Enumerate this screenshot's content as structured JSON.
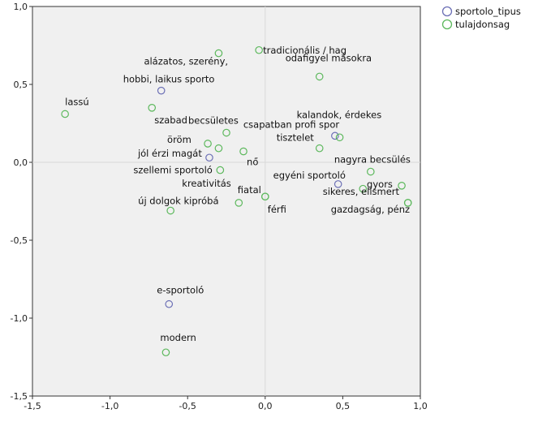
{
  "chart_data": {
    "type": "scatter",
    "title": "",
    "xlabel": "",
    "ylabel": "",
    "xlim": [
      -1.5,
      1.0
    ],
    "ylim": [
      -1.5,
      1.0
    ],
    "x_ticks": [
      -1.5,
      -1.0,
      -0.5,
      0.0,
      0.5,
      1.0
    ],
    "y_ticks": [
      -1.5,
      -1.0,
      -0.5,
      0.0,
      0.5,
      1.0
    ],
    "x_tick_labels": [
      "-1,5",
      "-1,0",
      "-0,5",
      "0,0",
      "0,5",
      "1,0"
    ],
    "y_tick_labels": [
      "-1,5",
      "-1,0",
      "-0,5",
      "0,0",
      "0,5",
      "1,0"
    ],
    "grid": false,
    "legend_position": "top-right-outside",
    "series": [
      {
        "name": "sportolo_tipus",
        "color": "#6b6fb5",
        "points": [
          {
            "label": "hobbi, laikus sporto",
            "x": -0.67,
            "y": 0.46
          },
          {
            "label": "jól érzi magát",
            "x": -0.36,
            "y": 0.03
          },
          {
            "label": "csapatban profi spor",
            "x": 0.45,
            "y": 0.17
          },
          {
            "label": "egyéni sportoló",
            "x": 0.47,
            "y": -0.14
          },
          {
            "label": "e-sportoló",
            "x": -0.62,
            "y": -0.91
          }
        ]
      },
      {
        "name": "tulajdonsag",
        "color": "#5cb85c",
        "points": [
          {
            "label": "tradicionális / hag",
            "x": -0.04,
            "y": 0.72
          },
          {
            "label": "alázatos, szerény,",
            "x": -0.3,
            "y": 0.7
          },
          {
            "label": "odafigyel másokra",
            "x": 0.35,
            "y": 0.55
          },
          {
            "label": "lassú",
            "x": -1.29,
            "y": 0.31
          },
          {
            "label": "szabad",
            "x": -0.73,
            "y": 0.35
          },
          {
            "label": "kalandok, érdekes",
            "x": 0.48,
            "y": 0.16
          },
          {
            "label": "becsületes",
            "x": -0.25,
            "y": 0.19
          },
          {
            "label": "öröm",
            "x": -0.37,
            "y": 0.12
          },
          {
            "label": "tisztelet",
            "x": 0.35,
            "y": 0.09
          },
          {
            "label": "",
            "x": -0.3,
            "y": 0.09
          },
          {
            "label": "nő",
            "x": -0.14,
            "y": 0.07
          },
          {
            "label": "szellemi sportoló",
            "x": -0.29,
            "y": -0.05
          },
          {
            "label": "nagyra becsülés",
            "x": 0.68,
            "y": -0.06
          },
          {
            "label": "gyors",
            "x": 0.88,
            "y": -0.15
          },
          {
            "label": "",
            "x": 0.63,
            "y": -0.17
          },
          {
            "label": "kreativitás",
            "x": -0.17,
            "y": -0.26
          },
          {
            "label": "fiatal",
            "x": 0.0,
            "y": -0.22
          },
          {
            "label": "férfi",
            "x": 0.0,
            "y": -0.22
          },
          {
            "label": "új dolgok kipróbá",
            "x": -0.61,
            "y": -0.31
          },
          {
            "label": "sikeres, elismert",
            "x": 0.92,
            "y": -0.26
          },
          {
            "label": "gazdagság, pénz",
            "x": 0.92,
            "y": -0.26
          },
          {
            "label": "modern",
            "x": -0.64,
            "y": -1.22
          }
        ]
      }
    ]
  }
}
